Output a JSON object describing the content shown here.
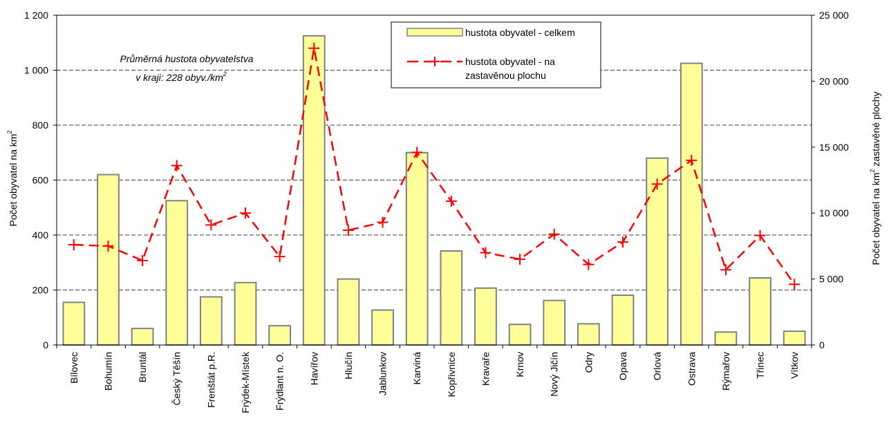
{
  "chart_data": {
    "type": "bar",
    "categories": [
      "Bílovec",
      "Bohumín",
      "Bruntál",
      "Český Těšín",
      "Frenštát p.R.",
      "Frýdek-Místek",
      "Frýdlant n. O.",
      "Havířov",
      "Hlučín",
      "Jablunkov",
      "Karviná",
      "Kopřivnice",
      "Kravaře",
      "Krnov",
      "Nový Jičín",
      "Odry",
      "Opava",
      "Orlová",
      "Ostrava",
      "Rýmařov",
      "Třinec",
      "Vítkov"
    ],
    "series": [
      {
        "name": "hustota obyvatel - celkem",
        "chart_type": "bar",
        "axis": "left",
        "color": "#ffff99",
        "values": [
          155,
          620,
          60,
          525,
          175,
          227,
          70,
          1125,
          240,
          127,
          700,
          342,
          207,
          75,
          162,
          77,
          181,
          680,
          1025,
          47,
          244,
          50
        ]
      },
      {
        "name": "hustota obyvatel - na zastavěnou plochu",
        "chart_type": "line",
        "axis": "right",
        "color": "#ff0000",
        "values": [
          7600,
          7500,
          6400,
          13600,
          9100,
          10000,
          6700,
          22500,
          8700,
          9300,
          14600,
          10900,
          7000,
          6500,
          8400,
          6100,
          7800,
          12200,
          14000,
          5700,
          8300,
          4600
        ]
      }
    ],
    "y_left": {
      "label": "Počet obyvatel na km",
      "label_sup": "2",
      "ylim": [
        0,
        1200
      ],
      "ticks": [
        "0",
        "200",
        "400",
        "600",
        "800",
        "1 000",
        "1 200"
      ]
    },
    "y_right": {
      "label": "Počet obyvatel na km",
      "label_sup": "2",
      "label_tail": " zastavěné plochy",
      "ylim": [
        0,
        25000
      ],
      "ticks": [
        "0",
        "5 000",
        "10 000",
        "15 000",
        "20 000",
        "25 000"
      ]
    },
    "grid": true,
    "legend_position": "top-center",
    "legend_entries": [
      "hustota obyvatel - celkem",
      "hustota obyvatel - na",
      "zastavěnou plochu"
    ],
    "annotation": {
      "line1": "Průměrná hustota obyvatelstva",
      "line2": "v kraji: 228 obyv./km",
      "line2_sup": "2"
    }
  }
}
